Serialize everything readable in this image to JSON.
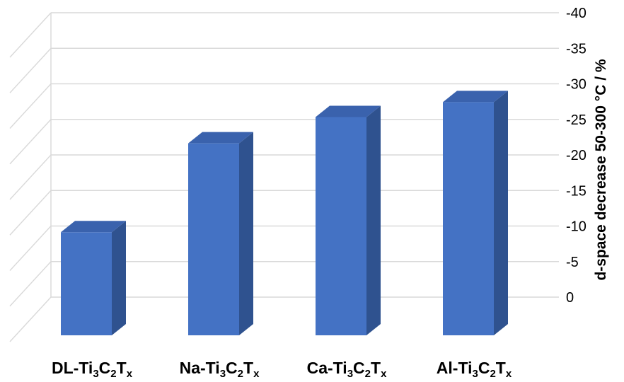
{
  "chart_data": {
    "type": "bar",
    "style": "3d-column",
    "categories": [
      {
        "prefix": "DL-Ti",
        "parts": [
          [
            "3",
            "C"
          ],
          [
            "2",
            "T"
          ],
          [
            "x",
            ""
          ]
        ]
      },
      {
        "prefix": "Na-Ti",
        "parts": [
          [
            "3",
            "C"
          ],
          [
            "2",
            "T"
          ],
          [
            "x",
            ""
          ]
        ]
      },
      {
        "prefix": "Ca-Ti",
        "parts": [
          [
            "3",
            "C"
          ],
          [
            "2",
            "T"
          ],
          [
            "x",
            ""
          ]
        ]
      },
      {
        "prefix": "Al-Ti",
        "parts": [
          [
            "3",
            "C"
          ],
          [
            "2",
            "T"
          ],
          [
            "x",
            ""
          ]
        ]
      }
    ],
    "values": [
      -14.5,
      -27,
      -30.7,
      -32.8
    ],
    "ylabel": "d-space decrease 50-300 °C / %",
    "yticks": [
      "-40",
      "-35",
      "-30",
      "-25",
      "-20",
      "-15",
      "-10",
      "-5",
      "0"
    ],
    "ylim": [
      0,
      -40
    ],
    "y_axis_position": "right",
    "grid": true,
    "colors": {
      "bar_front": "#4472c4",
      "bar_side": "#2f528f",
      "bar_top": "#3a62ad",
      "grid": "#d9d9d9",
      "text": "#000000"
    }
  }
}
